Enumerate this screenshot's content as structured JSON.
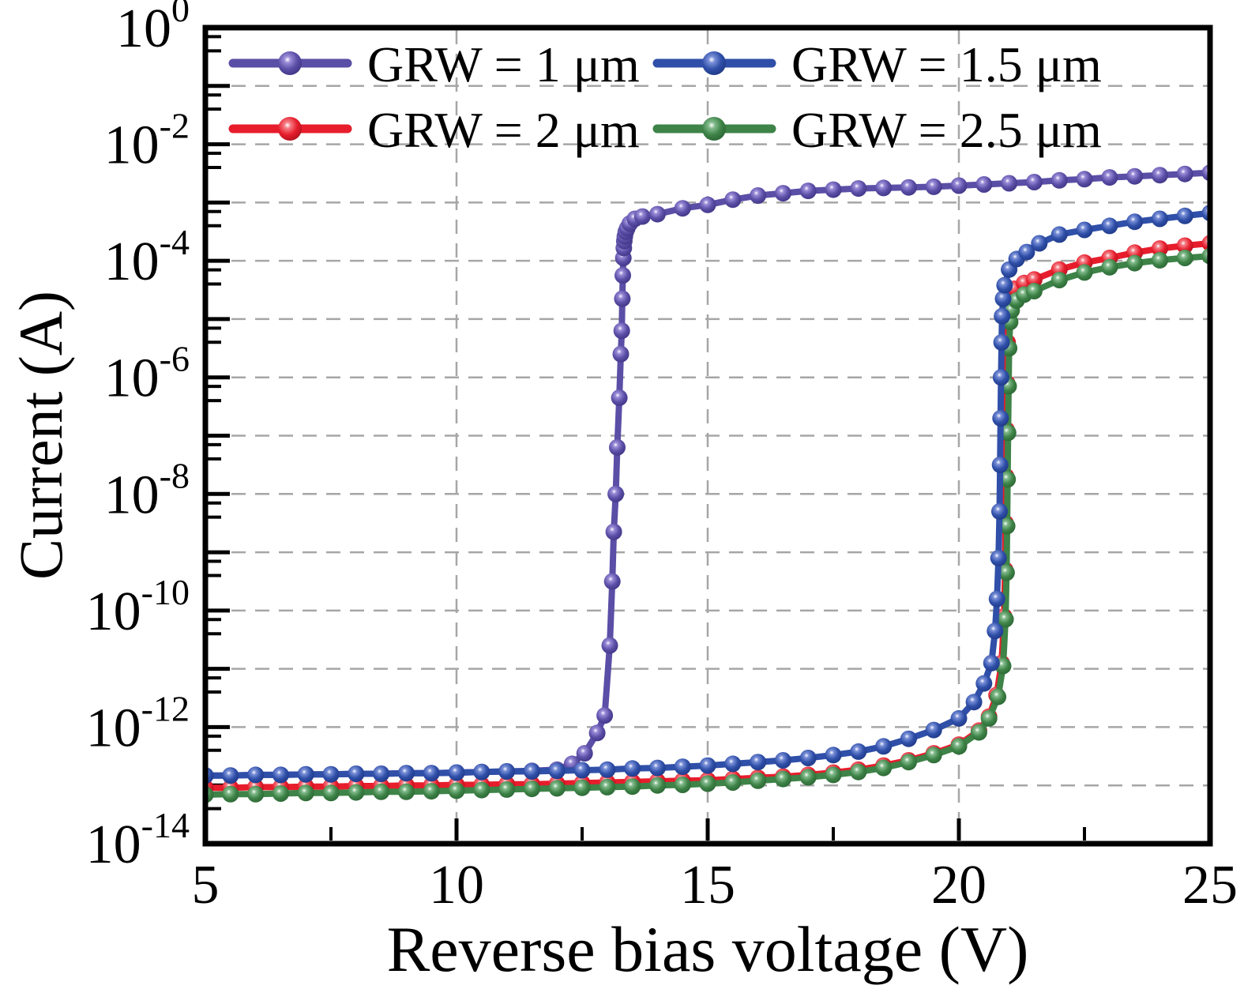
{
  "styles": {
    "background": "#ffffff",
    "axis_color": "#000000",
    "grid_color": "#a6a6a6"
  },
  "chart_data": {
    "type": "line",
    "title": "",
    "xlabel": "Reverse bias voltage (V)",
    "ylabel": "Current (A)",
    "x_axis": {
      "min": 5,
      "max": 25,
      "ticks": [
        5,
        10,
        15,
        20,
        25
      ],
      "minor_ticks": [
        7.5,
        12.5,
        17.5,
        22.5
      ],
      "scale": "linear"
    },
    "y_axis": {
      "scale": "log",
      "max_exp": 0,
      "min_exp": -14,
      "labeled_tick_exps": [
        0,
        -2,
        -4,
        -6,
        -8,
        -10,
        -12,
        -14
      ]
    },
    "grid": {
      "x_lines": [
        10,
        15,
        20
      ],
      "y_line_exps": [
        -1,
        -2,
        -3,
        -4,
        -5,
        -6,
        -7,
        -8,
        -9,
        -10,
        -11,
        -12,
        -13
      ],
      "dashed": true
    },
    "legend": {
      "position": "top-inside",
      "entries": [
        "GRW = 1 μm",
        "GRW = 1.5 μm",
        "GRW = 2 μm",
        "GRW = 2.5 μm"
      ]
    },
    "series": [
      {
        "name": "GRW = 1 μm",
        "color": "#5A4EA6",
        "color_light": "#9b8cd8",
        "color_dark": "#3b3080",
        "points": [
          [
            5,
            -12.83
          ],
          [
            5.5,
            -12.83
          ],
          [
            6,
            -12.82
          ],
          [
            6.5,
            -12.82
          ],
          [
            7,
            -12.81
          ],
          [
            7.5,
            -12.81
          ],
          [
            8,
            -12.8
          ],
          [
            8.5,
            -12.8
          ],
          [
            9,
            -12.79
          ],
          [
            9.5,
            -12.79
          ],
          [
            10,
            -12.78
          ],
          [
            10.5,
            -12.77
          ],
          [
            11,
            -12.76
          ],
          [
            11.5,
            -12.75
          ],
          [
            12,
            -12.73
          ],
          [
            12.3,
            -12.63
          ],
          [
            12.55,
            -12.45
          ],
          [
            12.8,
            -12.1
          ],
          [
            12.95,
            -11.8
          ],
          [
            13.05,
            -10.6
          ],
          [
            13.1,
            -9.5
          ],
          [
            13.13,
            -8.65
          ],
          [
            13.17,
            -8.0
          ],
          [
            13.2,
            -7.2
          ],
          [
            13.24,
            -6.35
          ],
          [
            13.27,
            -5.6
          ],
          [
            13.29,
            -5.2
          ],
          [
            13.3,
            -4.65
          ],
          [
            13.31,
            -4.25
          ],
          [
            13.32,
            -3.95
          ],
          [
            13.33,
            -3.78
          ],
          [
            13.34,
            -3.66
          ],
          [
            13.35,
            -3.58
          ],
          [
            13.37,
            -3.5
          ],
          [
            13.4,
            -3.44
          ],
          [
            13.45,
            -3.36
          ],
          [
            13.55,
            -3.28
          ],
          [
            13.7,
            -3.24
          ],
          [
            14,
            -3.2
          ],
          [
            14.5,
            -3.1
          ],
          [
            15,
            -3.04
          ],
          [
            15.5,
            -2.95
          ],
          [
            16,
            -2.88
          ],
          [
            16.5,
            -2.84
          ],
          [
            17,
            -2.8
          ],
          [
            17.5,
            -2.78
          ],
          [
            18,
            -2.76
          ],
          [
            18.5,
            -2.75
          ],
          [
            19,
            -2.74
          ],
          [
            19.5,
            -2.73
          ],
          [
            20,
            -2.71
          ],
          [
            20.5,
            -2.69
          ],
          [
            21,
            -2.67
          ],
          [
            21.5,
            -2.65
          ],
          [
            22,
            -2.62
          ],
          [
            22.5,
            -2.6
          ],
          [
            23,
            -2.57
          ],
          [
            23.5,
            -2.55
          ],
          [
            24,
            -2.53
          ],
          [
            24.5,
            -2.51
          ],
          [
            25,
            -2.49
          ]
        ]
      },
      {
        "name": "GRW = 2 μm",
        "color": "#E71D2C",
        "color_light": "#f47c84",
        "color_dark": "#a50e1b",
        "points": [
          [
            5,
            -13.04
          ],
          [
            5.5,
            -13.04
          ],
          [
            6,
            -13.03
          ],
          [
            6.5,
            -13.03
          ],
          [
            7,
            -13.02
          ],
          [
            7.5,
            -13.02
          ],
          [
            8,
            -13.01
          ],
          [
            8.5,
            -13.01
          ],
          [
            9,
            -13.0
          ],
          [
            9.5,
            -13.0
          ],
          [
            10,
            -12.99
          ],
          [
            10.5,
            -12.99
          ],
          [
            11,
            -12.98
          ],
          [
            11.5,
            -12.98
          ],
          [
            12,
            -12.97
          ],
          [
            12.5,
            -12.96
          ],
          [
            13,
            -12.95
          ],
          [
            13.5,
            -12.94
          ],
          [
            14,
            -12.93
          ],
          [
            14.5,
            -12.92
          ],
          [
            15,
            -12.91
          ],
          [
            15.5,
            -12.89
          ],
          [
            16,
            -12.87
          ],
          [
            16.5,
            -12.85
          ],
          [
            17,
            -12.82
          ],
          [
            17.5,
            -12.78
          ],
          [
            18,
            -12.73
          ],
          [
            18.5,
            -12.66
          ],
          [
            19,
            -12.57
          ],
          [
            19.5,
            -12.45
          ],
          [
            20,
            -12.3
          ],
          [
            20.4,
            -12.06
          ],
          [
            20.6,
            -11.82
          ],
          [
            20.75,
            -11.45
          ],
          [
            20.85,
            -10.9
          ],
          [
            20.9,
            -10.1
          ],
          [
            20.92,
            -9.3
          ],
          [
            20.93,
            -8.5
          ],
          [
            20.94,
            -7.7
          ],
          [
            20.95,
            -6.9
          ],
          [
            20.96,
            -6.1
          ],
          [
            20.97,
            -5.4
          ],
          [
            20.98,
            -4.95
          ],
          [
            21,
            -4.62
          ],
          [
            21.1,
            -4.48
          ],
          [
            21.3,
            -4.38
          ],
          [
            21.5,
            -4.32
          ],
          [
            22,
            -4.15
          ],
          [
            22.5,
            -4.03
          ],
          [
            23,
            -3.95
          ],
          [
            23.5,
            -3.86
          ],
          [
            24,
            -3.79
          ],
          [
            24.5,
            -3.74
          ],
          [
            25,
            -3.7
          ]
        ]
      },
      {
        "name": "GRW = 2.5 μm",
        "color": "#3E8348",
        "color_light": "#83bb8c",
        "color_dark": "#27602f",
        "points": [
          [
            5,
            -13.16
          ],
          [
            5.5,
            -13.15
          ],
          [
            6,
            -13.15
          ],
          [
            6.5,
            -13.14
          ],
          [
            7,
            -13.13
          ],
          [
            7.5,
            -13.13
          ],
          [
            8,
            -13.12
          ],
          [
            8.5,
            -13.11
          ],
          [
            9,
            -13.11
          ],
          [
            9.5,
            -13.1
          ],
          [
            10,
            -13.09
          ],
          [
            10.5,
            -13.08
          ],
          [
            11,
            -13.07
          ],
          [
            11.5,
            -13.06
          ],
          [
            12,
            -13.05
          ],
          [
            12.5,
            -13.04
          ],
          [
            13,
            -13.03
          ],
          [
            13.5,
            -13.02
          ],
          [
            14,
            -13.0
          ],
          [
            14.5,
            -12.99
          ],
          [
            15,
            -12.97
          ],
          [
            15.5,
            -12.95
          ],
          [
            16,
            -12.92
          ],
          [
            16.5,
            -12.89
          ],
          [
            17,
            -12.86
          ],
          [
            17.5,
            -12.82
          ],
          [
            18,
            -12.77
          ],
          [
            18.5,
            -12.7
          ],
          [
            19,
            -12.6
          ],
          [
            19.5,
            -12.48
          ],
          [
            20,
            -12.33
          ],
          [
            20.4,
            -12.09
          ],
          [
            20.6,
            -11.85
          ],
          [
            20.78,
            -11.48
          ],
          [
            20.88,
            -10.95
          ],
          [
            20.93,
            -10.15
          ],
          [
            20.95,
            -9.35
          ],
          [
            20.96,
            -8.55
          ],
          [
            20.97,
            -7.75
          ],
          [
            20.98,
            -6.95
          ],
          [
            20.99,
            -6.15
          ],
          [
            21,
            -5.5
          ],
          [
            21.02,
            -5.05
          ],
          [
            21.05,
            -4.85
          ],
          [
            21.15,
            -4.68
          ],
          [
            21.3,
            -4.58
          ],
          [
            21.5,
            -4.52
          ],
          [
            22,
            -4.33
          ],
          [
            22.5,
            -4.2
          ],
          [
            23,
            -4.11
          ],
          [
            23.5,
            -4.04
          ],
          [
            24,
            -3.99
          ],
          [
            24.5,
            -3.95
          ],
          [
            25,
            -3.92
          ]
        ]
      },
      {
        "name": "GRW = 1.5 μm",
        "color": "#2F4FA8",
        "color_light": "#7a90d8",
        "color_dark": "#1c3480",
        "points": [
          [
            5,
            -12.83
          ],
          [
            5.5,
            -12.83
          ],
          [
            6,
            -12.82
          ],
          [
            6.5,
            -12.82
          ],
          [
            7,
            -12.81
          ],
          [
            7.5,
            -12.81
          ],
          [
            8,
            -12.8
          ],
          [
            8.5,
            -12.8
          ],
          [
            9,
            -12.79
          ],
          [
            9.5,
            -12.79
          ],
          [
            10,
            -12.78
          ],
          [
            10.5,
            -12.77
          ],
          [
            11,
            -12.76
          ],
          [
            11.5,
            -12.76
          ],
          [
            12,
            -12.75
          ],
          [
            12.5,
            -12.74
          ],
          [
            13,
            -12.73
          ],
          [
            13.5,
            -12.71
          ],
          [
            14,
            -12.7
          ],
          [
            14.5,
            -12.68
          ],
          [
            15,
            -12.66
          ],
          [
            15.5,
            -12.63
          ],
          [
            16,
            -12.6
          ],
          [
            16.5,
            -12.57
          ],
          [
            17,
            -12.53
          ],
          [
            17.5,
            -12.48
          ],
          [
            18,
            -12.42
          ],
          [
            18.5,
            -12.33
          ],
          [
            19,
            -12.2
          ],
          [
            19.5,
            -12.05
          ],
          [
            20,
            -11.85
          ],
          [
            20.3,
            -11.57
          ],
          [
            20.5,
            -11.25
          ],
          [
            20.65,
            -10.9
          ],
          [
            20.72,
            -10.35
          ],
          [
            20.76,
            -9.8
          ],
          [
            20.79,
            -9.1
          ],
          [
            20.81,
            -8.3
          ],
          [
            20.82,
            -7.5
          ],
          [
            20.83,
            -6.7
          ],
          [
            20.84,
            -6.0
          ],
          [
            20.85,
            -5.4
          ],
          [
            20.86,
            -4.95
          ],
          [
            20.88,
            -4.65
          ],
          [
            20.91,
            -4.42
          ],
          [
            21,
            -4.15
          ],
          [
            21.15,
            -3.97
          ],
          [
            21.35,
            -3.85
          ],
          [
            21.6,
            -3.7
          ],
          [
            22,
            -3.55
          ],
          [
            22.5,
            -3.47
          ],
          [
            23,
            -3.4
          ],
          [
            23.5,
            -3.33
          ],
          [
            24,
            -3.28
          ],
          [
            24.5,
            -3.23
          ],
          [
            25,
            -3.18
          ]
        ]
      }
    ]
  }
}
